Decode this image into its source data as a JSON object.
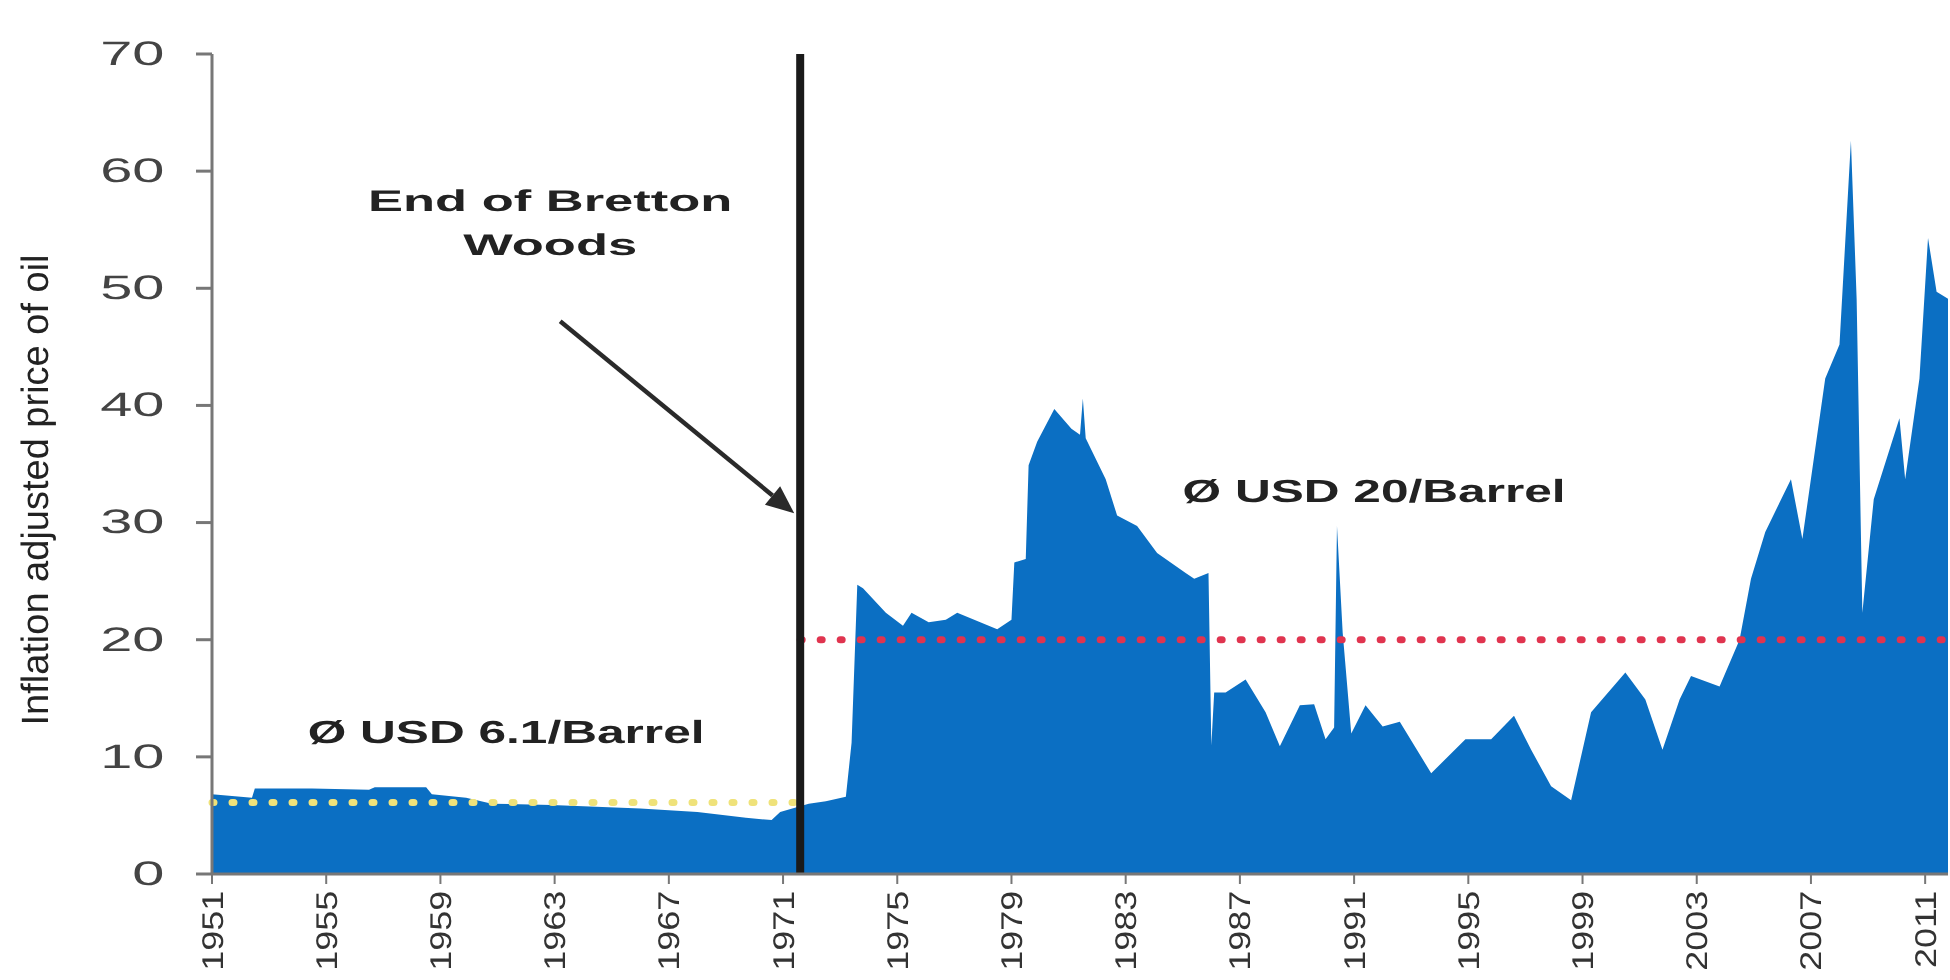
{
  "chart_data": {
    "type": "area",
    "ylabel": "Inflation adjusted price of oil",
    "xlim": [
      1951,
      2011.8
    ],
    "xticks": [
      1951,
      1955,
      1959,
      1963,
      1967,
      1971,
      1975,
      1979,
      1983,
      1987,
      1991,
      1995,
      1999,
      2003,
      2007,
      2011
    ],
    "ylim": [
      0,
      70
    ],
    "yticks": [
      0,
      10,
      20,
      30,
      40,
      50,
      60,
      70
    ],
    "series": [
      {
        "color": "#0b6fc3",
        "x": [
          1951.0,
          1952.0,
          1952.4,
          1952.5,
          1954.5,
          1956.5,
          1956.7,
          1958.5,
          1958.7,
          1959.9,
          1960.8,
          1962.9,
          1966.0,
          1968.0,
          1969.7,
          1970.6,
          1970.9,
          1971.9,
          1972.5,
          1973.2,
          1973.4,
          1973.6,
          1973.8,
          1974.6,
          1975.2,
          1975.5,
          1976.1,
          1976.7,
          1977.1,
          1978.5,
          1979.0,
          1979.1,
          1979.5,
          1979.6,
          1979.9,
          1980.5,
          1981.1,
          1981.4,
          1981.5,
          1981.6,
          1982.3,
          1982.7,
          1983.4,
          1984.1,
          1985.1,
          1985.4,
          1985.9,
          1986.0,
          1986.1,
          1986.5,
          1987.2,
          1987.9,
          1988.4,
          1989.1,
          1989.6,
          1990.0,
          1990.3,
          1990.4,
          1990.6,
          1990.9,
          1991.4,
          1992.0,
          1992.6,
          1993.7,
          1994.9,
          1995.8,
          1996.6,
          1997.2,
          1997.9,
          1998.6,
          1999.3,
          2000.5,
          2001.2,
          2001.8,
          2002.4,
          2002.8,
          2003.8,
          2004.5,
          2004.9,
          2005.4,
          2006.3,
          2006.7,
          2007.5,
          2008.0,
          2008.4,
          2008.6,
          2008.8,
          2009.2,
          2009.8,
          2010.1,
          2010.3,
          2010.8,
          2011.1,
          2011.4,
          2011.8
        ],
        "values": [
          6.8,
          6.6,
          6.5,
          7.3,
          7.3,
          7.2,
          7.4,
          7.4,
          6.8,
          6.5,
          6.0,
          5.9,
          5.6,
          5.3,
          4.8,
          4.6,
          5.3,
          6.0,
          6.2,
          6.6,
          11.2,
          24.7,
          24.4,
          22.3,
          21.2,
          22.3,
          21.5,
          21.7,
          22.3,
          20.9,
          21.7,
          26.6,
          26.9,
          34.9,
          36.9,
          39.7,
          38.0,
          37.5,
          40.6,
          37.2,
          33.7,
          30.6,
          29.7,
          27.4,
          25.7,
          25.2,
          25.7,
          11.0,
          15.5,
          15.5,
          16.6,
          13.8,
          10.9,
          14.4,
          14.5,
          11.5,
          12.5,
          29.7,
          20.6,
          12.0,
          14.4,
          12.6,
          13.0,
          8.6,
          11.5,
          11.5,
          13.5,
          10.6,
          7.5,
          6.3,
          13.8,
          17.2,
          14.9,
          10.6,
          14.9,
          16.9,
          16.0,
          20.0,
          25.2,
          29.2,
          33.7,
          28.6,
          42.3,
          45.2,
          62.6,
          49.1,
          22.3,
          32.0,
          36.6,
          38.9,
          33.7,
          42.3,
          54.3,
          49.7,
          49.1
        ]
      },
      {
        "type": "line",
        "color": "#efe27a",
        "line_style": "dotted",
        "x": [
          1951,
          1971.6
        ],
        "values": [
          6.1,
          6.1
        ]
      },
      {
        "type": "line",
        "color": "#e0344f",
        "line_style": "dotted",
        "x": [
          1971.6,
          2011.8
        ],
        "values": [
          20,
          20
        ]
      }
    ],
    "ref_lines": [
      {
        "axis": "x",
        "value": 1971.6,
        "color": "#1a1a1a",
        "label": "End of Bretton Woods"
      }
    ],
    "annotations": [
      "Ø USD 6.1/Barrel",
      "Ø USD 20/Barrel"
    ]
  }
}
